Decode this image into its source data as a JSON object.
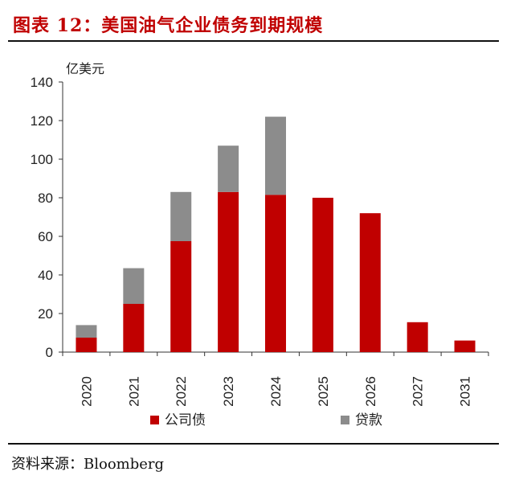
{
  "header": {
    "title": "图表 12：美国油气企业债务到期规模"
  },
  "footer": {
    "source": "资料来源：Bloomberg"
  },
  "colors": {
    "title": "#c00000",
    "bond": "#c00000",
    "loan": "#8c8c8c"
  },
  "chart_data": {
    "type": "bar",
    "stacked": true,
    "title": "",
    "xlabel": "",
    "ylabel": "亿美元",
    "ylim": [
      0,
      140
    ],
    "yticks": [
      0,
      20,
      40,
      60,
      80,
      100,
      120,
      140
    ],
    "grid": false,
    "legend_position": "bottom",
    "categories": [
      "2020",
      "2021",
      "2022",
      "2023",
      "2024",
      "2025",
      "2026",
      "2027",
      "2031"
    ],
    "series": [
      {
        "name": "公司债",
        "color": "#c00000",
        "values": [
          7.5,
          25,
          57.5,
          83,
          81.5,
          80,
          72,
          15.5,
          6
        ]
      },
      {
        "name": "贷款",
        "color": "#8c8c8c",
        "values": [
          6.5,
          18.5,
          25.5,
          24,
          40.5,
          0,
          0,
          0,
          0
        ]
      }
    ]
  }
}
